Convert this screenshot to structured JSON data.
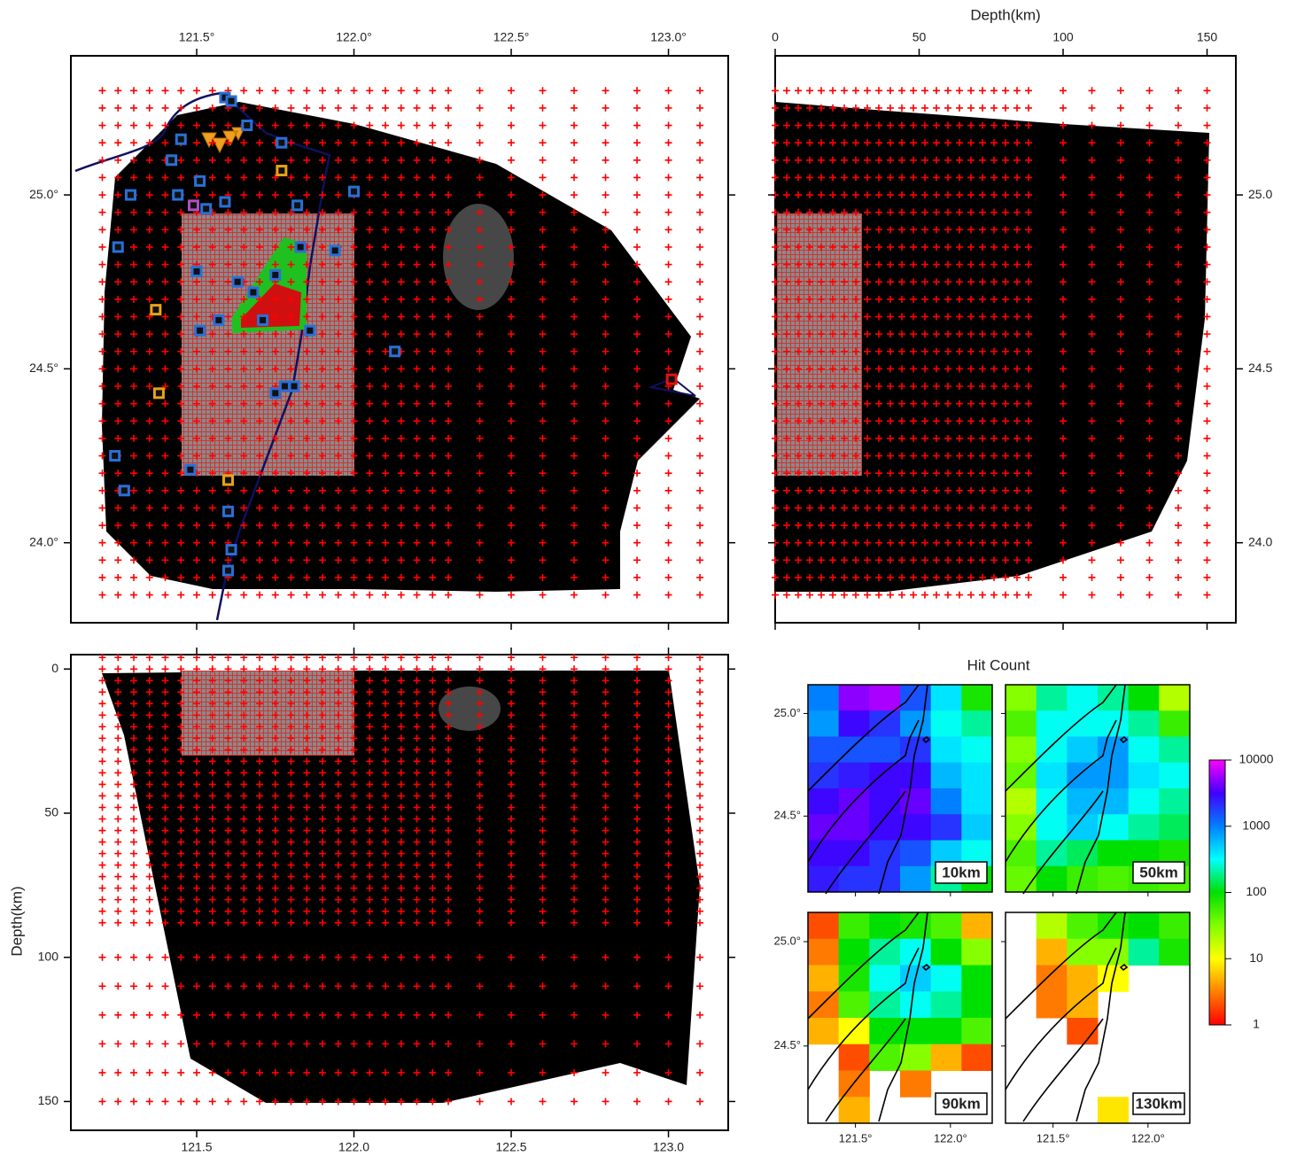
{
  "chart_data": [
    {
      "type": "map",
      "xlim": [
        121.1,
        123.19
      ],
      "ylim": [
        23.77,
        25.4
      ],
      "xticks": [
        {
          "value": 121.5,
          "label": "121.5°"
        },
        {
          "value": 122.0,
          "label": "122.0°"
        },
        {
          "value": 122.5,
          "label": "122.5°"
        },
        {
          "value": 123.0,
          "label": "123.0°"
        }
      ],
      "yticks": [
        {
          "value": 24.0,
          "label": "24.0°"
        },
        {
          "value": 24.5,
          "label": "24.5°"
        },
        {
          "value": 25.0,
          "label": "25.0°"
        }
      ],
      "grid_x": [
        121.2,
        121.25,
        121.3,
        121.35,
        121.4,
        121.45,
        121.5,
        121.55,
        121.6,
        121.65,
        121.7,
        121.75,
        121.8,
        121.85,
        121.9,
        121.95,
        122.0,
        122.05,
        122.1,
        122.15,
        122.2,
        122.25,
        122.3,
        122.4,
        122.5,
        122.6,
        122.7,
        122.8,
        122.9,
        123.0,
        123.1
      ],
      "grid_y": [
        23.85,
        23.9,
        23.95,
        24.0,
        24.05,
        24.1,
        24.15,
        24.2,
        24.25,
        24.3,
        24.35,
        24.4,
        24.45,
        24.5,
        24.55,
        24.6,
        24.65,
        24.7,
        24.75,
        24.8,
        24.85,
        24.9,
        24.95,
        25.0,
        25.05,
        25.1,
        25.15,
        25.2,
        25.25,
        25.3
      ],
      "grid_color": "#ff0000",
      "stations": [
        {
          "color": "#2a6fd6",
          "x": [
            121.59,
            121.61,
            121.45,
            121.66,
            121.42,
            121.77,
            121.29,
            121.51,
            121.44,
            121.53,
            121.59,
            121.82,
            122.0,
            121.25,
            121.83,
            121.94,
            121.5,
            121.63,
            121.75,
            121.68,
            121.71,
            121.57,
            121.51,
            121.86,
            122.13,
            121.81,
            121.78,
            121.75,
            121.24,
            121.48,
            121.27,
            121.6,
            121.61,
            121.6
          ],
          "y": [
            25.28,
            25.27,
            25.16,
            25.2,
            25.1,
            25.15,
            25.0,
            25.04,
            25.0,
            24.96,
            24.98,
            24.97,
            25.01,
            24.85,
            24.85,
            24.84,
            24.78,
            24.75,
            24.77,
            24.72,
            24.64,
            24.64,
            24.61,
            24.61,
            24.55,
            24.45,
            24.45,
            24.43,
            24.25,
            24.21,
            24.15,
            24.09,
            23.98,
            23.92
          ]
        },
        {
          "color": "#e8a317",
          "x": [
            121.77,
            121.37,
            121.38,
            121.6
          ],
          "y": [
            25.07,
            24.67,
            24.43,
            24.18
          ]
        },
        {
          "color": "#b04fc0",
          "x": [
            121.49
          ],
          "y": [
            24.97
          ]
        },
        {
          "color": "#e81010",
          "x": [
            123.01
          ],
          "y": [
            24.47
          ]
        }
      ]
    },
    {
      "type": "map",
      "xlabel": "Depth(km)",
      "xlim": [
        0,
        160
      ],
      "ylim": [
        23.77,
        25.4
      ],
      "xticks": [
        0,
        50,
        100,
        150
      ],
      "yticks": [
        {
          "value": 24.0,
          "label": "24.0"
        },
        {
          "value": 24.5,
          "label": "24.5"
        },
        {
          "value": 25.0,
          "label": "25.0"
        }
      ],
      "grid_x": [
        0,
        4,
        8,
        12,
        16,
        20,
        24,
        28,
        32,
        36,
        40,
        44,
        48,
        52,
        56,
        60,
        64,
        68,
        72,
        76,
        80,
        84,
        88,
        100,
        110,
        120,
        130,
        140,
        150
      ],
      "grid_y": [
        23.85,
        23.9,
        23.95,
        24.0,
        24.05,
        24.1,
        24.15,
        24.2,
        24.25,
        24.3,
        24.35,
        24.4,
        24.45,
        24.5,
        24.55,
        24.6,
        24.65,
        24.7,
        24.75,
        24.8,
        24.85,
        24.9,
        24.95,
        25.0,
        25.05,
        25.1,
        25.15,
        25.2,
        25.25,
        25.3
      ],
      "grid_color": "#ff0000"
    },
    {
      "type": "map",
      "ylabel": "Depth(km)",
      "xlim": [
        121.1,
        123.19
      ],
      "ylim": [
        160,
        -5
      ],
      "xticks": [
        121.5,
        {
          "value": 122.0,
          "label": "122.0"
        },
        122.5,
        {
          "value": 123.0,
          "label": "123.0"
        }
      ],
      "yticks": [
        0,
        50,
        100,
        150
      ],
      "grid_x": [
        121.2,
        121.25,
        121.3,
        121.35,
        121.4,
        121.45,
        121.5,
        121.55,
        121.6,
        121.65,
        121.7,
        121.75,
        121.8,
        121.85,
        121.9,
        121.95,
        122.0,
        122.05,
        122.1,
        122.15,
        122.2,
        122.25,
        122.3,
        122.4,
        122.5,
        122.6,
        122.7,
        122.8,
        122.9,
        123.0,
        123.1
      ],
      "grid_y": [
        -4,
        0,
        4,
        8,
        12,
        16,
        20,
        24,
        28,
        32,
        36,
        40,
        44,
        48,
        52,
        56,
        60,
        64,
        68,
        72,
        76,
        80,
        84,
        88,
        100,
        110,
        120,
        130,
        140,
        150
      ],
      "grid_color": "#ff0000"
    },
    {
      "type": "heatmap",
      "title": "Hit Count",
      "xlim": [
        121.25,
        122.22
      ],
      "ylim": [
        24.13,
        25.14
      ],
      "xticks": [
        {
          "value": 121.5,
          "label": "121.5°"
        },
        {
          "value": 122.0,
          "label": "122.0°"
        }
      ],
      "yticks": [
        {
          "value": 24.5,
          "label": "24.5°"
        },
        {
          "value": 25.0,
          "label": "25.0°"
        }
      ],
      "colorbar": {
        "log": true,
        "lim": [
          1,
          10000
        ],
        "ticks": [
          1,
          10,
          100,
          1000,
          10000
        ]
      },
      "panels": [
        {
          "label": "10km",
          "values": [
            [
              1000,
              5000,
              6000,
              1500,
              400,
              80
            ],
            [
              800,
              3000,
              2000,
              800,
              300,
              200
            ],
            [
              1500,
              1500,
              1500,
              2000,
              400,
              300
            ],
            [
              2000,
              2500,
              3000,
              3000,
              600,
              400
            ],
            [
              3000,
              4000,
              3000,
              4000,
              1000,
              400
            ],
            [
              4000,
              4000,
              3000,
              3000,
              2000,
              500
            ],
            [
              3000,
              3000,
              2000,
              1500,
              500,
              300
            ],
            [
              2500,
              2000,
              2000,
              800,
              200,
              100
            ]
          ]
        },
        {
          "label": "50km",
          "values": [
            [
              30,
              200,
              300,
              200,
              100,
              20
            ],
            [
              50,
              300,
              300,
              300,
              200,
              60
            ],
            [
              30,
              300,
              500,
              800,
              300,
              200
            ],
            [
              40,
              400,
              800,
              800,
              400,
              300
            ],
            [
              20,
              300,
              600,
              600,
              300,
              200
            ],
            [
              30,
              300,
              500,
              300,
              200,
              150
            ],
            [
              50,
              200,
              150,
              100,
              100,
              80
            ],
            [
              40,
              100,
              60,
              50,
              60,
              50
            ]
          ]
        },
        {
          "label": "90km",
          "values": [
            [
              2,
              60,
              100,
              80,
              50,
              5
            ],
            [
              3,
              100,
              200,
              300,
              100,
              30
            ],
            [
              5,
              80,
              300,
              500,
              300,
              100
            ],
            [
              3,
              50,
              200,
              300,
              200,
              100
            ],
            [
              5,
              10,
              100,
              100,
              100,
              50
            ],
            [
              null,
              2,
              50,
              30,
              5,
              2
            ],
            [
              null,
              3,
              null,
              3,
              null,
              null
            ],
            [
              null,
              5,
              null,
              null,
              null,
              null
            ]
          ]
        },
        {
          "label": "130km",
          "values": [
            [
              null,
              20,
              50,
              80,
              100,
              60
            ],
            [
              null,
              5,
              30,
              30,
              200,
              80
            ],
            [
              null,
              3,
              5,
              10,
              null,
              null
            ],
            [
              null,
              3,
              5,
              null,
              null,
              null
            ],
            [
              null,
              null,
              2,
              null,
              null,
              null
            ],
            [
              null,
              null,
              null,
              null,
              null,
              null
            ],
            [
              null,
              null,
              null,
              null,
              null,
              null
            ],
            [
              null,
              null,
              null,
              8,
              null,
              null
            ]
          ]
        }
      ]
    }
  ]
}
